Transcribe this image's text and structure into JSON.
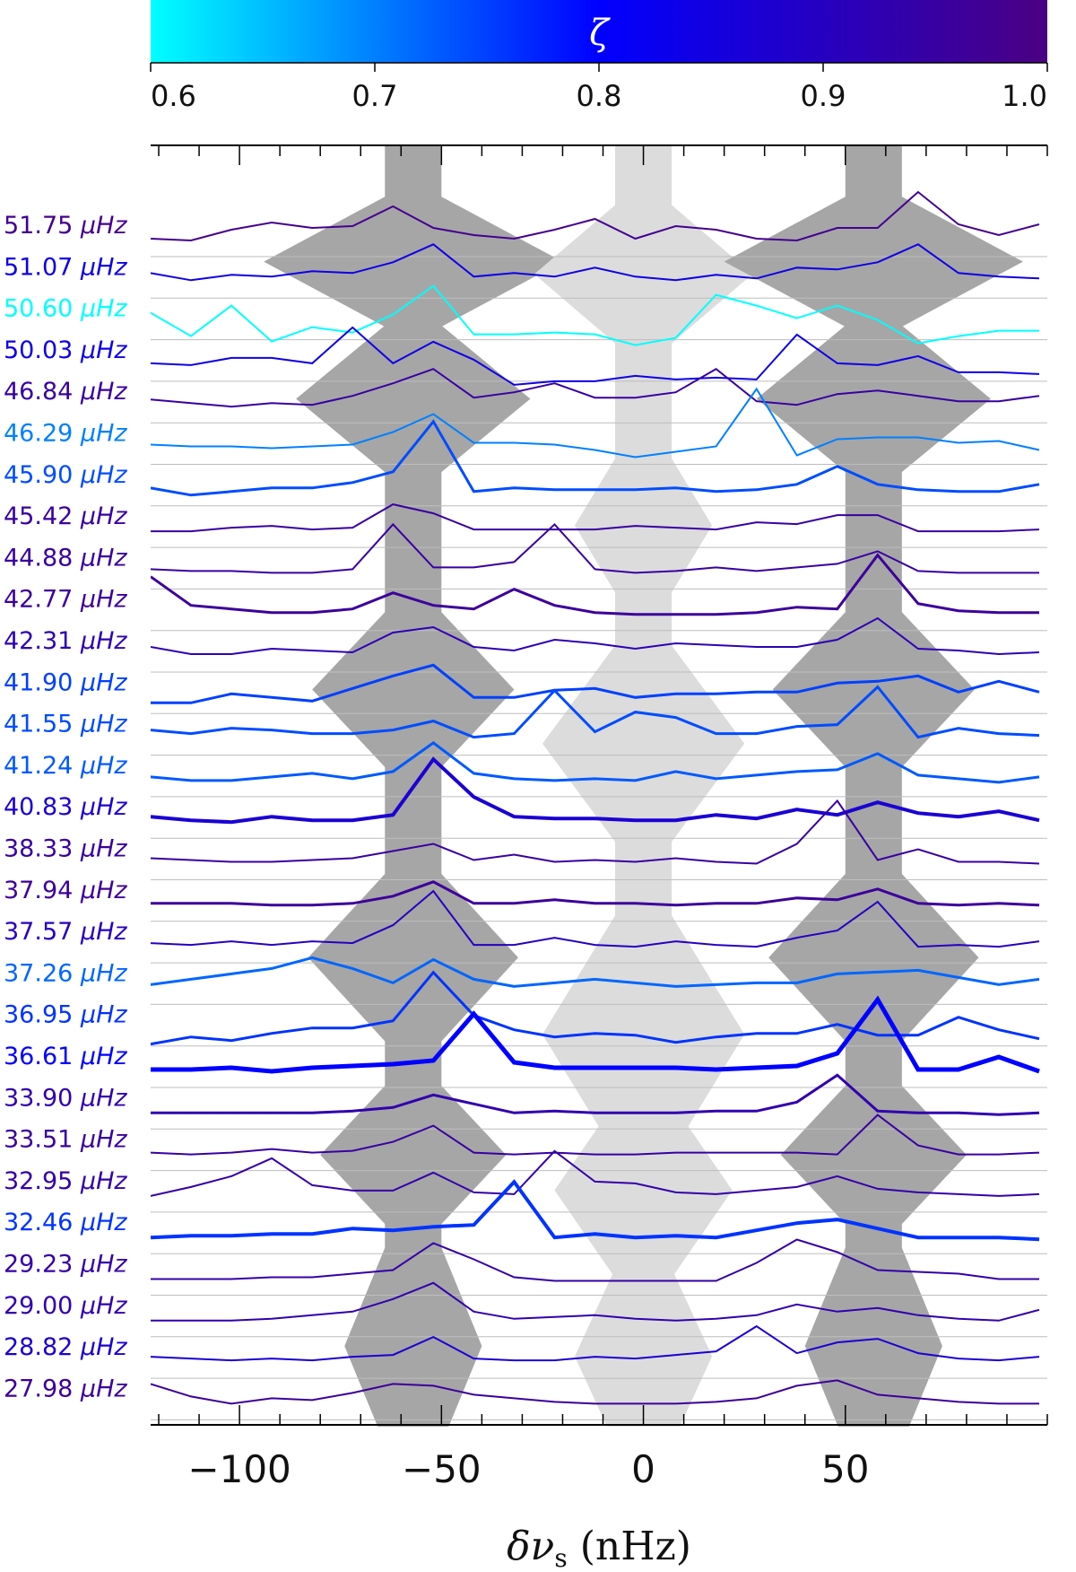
{
  "chart_data": {
    "type": "line",
    "colorbar": {
      "symbol": "ζ",
      "range": [
        0.6,
        1.0
      ],
      "ticks": [
        "0.6",
        "0.7",
        "0.8",
        "0.9",
        "1.0"
      ],
      "colors": [
        "#00ffff",
        "#0000ff",
        "#4b0082"
      ]
    },
    "xlabel": "δν",
    "xlabel_sub": "s",
    "xlabel_unit": "(nHz)",
    "xlim": [
      -122,
      100
    ],
    "xticks": [
      -100,
      -50,
      0,
      50
    ],
    "xtick_labels": [
      "−100",
      "−50",
      "0",
      "50"
    ],
    "unit": "μHz",
    "bands": [
      {
        "center": -57,
        "halfwidth": 7,
        "shade": "dark"
      },
      {
        "center": 0,
        "halfwidth": 7,
        "shade": "light"
      },
      {
        "center": 57,
        "halfwidth": 7,
        "shade": "dark"
      }
    ],
    "x": [
      -122,
      -112,
      -102,
      -92,
      -82,
      -72,
      -62,
      -52,
      -42,
      -32,
      -22,
      -12,
      -2,
      8,
      18,
      28,
      38,
      48,
      58,
      68,
      78,
      88,
      98
    ],
    "rows": [
      {
        "freq": "51.75",
        "zeta": 0.98,
        "width": 2,
        "y": [
          0.1,
          0.05,
          0.35,
          0.55,
          0.4,
          0.45,
          1.0,
          0.4,
          0.2,
          0.1,
          0.35,
          0.65,
          0.1,
          0.45,
          0.35,
          0.1,
          0.05,
          0.4,
          0.4,
          1.4,
          0.5,
          0.2,
          0.5
        ]
      },
      {
        "freq": "51.07",
        "zeta": 0.84,
        "width": 2,
        "y": [
          0.3,
          0.1,
          0.25,
          0.2,
          0.35,
          0.3,
          0.6,
          1.1,
          0.2,
          0.3,
          0.2,
          0.45,
          0.2,
          0.1,
          0.25,
          0.15,
          0.45,
          0.4,
          0.6,
          1.1,
          0.3,
          0.2,
          0.15
        ]
      },
      {
        "freq": "50.60",
        "zeta": 0.6,
        "width": 2,
        "y": [
          0.35,
          -0.3,
          0.55,
          -0.45,
          -0.05,
          -0.2,
          0.3,
          1.1,
          -0.25,
          -0.25,
          -0.2,
          -0.25,
          -0.55,
          -0.35,
          0.85,
          0.55,
          0.2,
          0.55,
          0.15,
          -0.5,
          -0.3,
          -0.15,
          -0.15
        ]
      },
      {
        "freq": "50.03",
        "zeta": 0.84,
        "width": 2,
        "y": [
          0.1,
          0.05,
          0.25,
          0.25,
          0.1,
          1.1,
          0.1,
          0.7,
          0.2,
          -0.5,
          -0.4,
          -0.4,
          -0.25,
          -0.35,
          -0.3,
          -0.35,
          0.9,
          0.1,
          0.05,
          0.3,
          -0.15,
          -0.15,
          -0.2
        ]
      },
      {
        "freq": "46.84",
        "zeta": 0.95,
        "width": 2,
        "y": [
          0.25,
          0.15,
          0.05,
          0.15,
          0.1,
          0.35,
          0.7,
          1.1,
          0.3,
          0.45,
          0.7,
          0.3,
          0.3,
          0.45,
          1.1,
          0.2,
          0.1,
          0.4,
          0.5,
          0.35,
          0.2,
          0.2,
          0.35
        ]
      },
      {
        "freq": "46.29",
        "zeta": 0.7,
        "width": 2,
        "y": [
          0.15,
          0.1,
          0.1,
          0.05,
          0.1,
          0.15,
          0.5,
          1.0,
          0.2,
          0.2,
          0.15,
          0.0,
          -0.2,
          -0.05,
          0.1,
          1.7,
          -0.15,
          0.3,
          0.35,
          0.35,
          0.2,
          0.25,
          0.0
        ]
      },
      {
        "freq": "45.90",
        "zeta": 0.74,
        "width": 3,
        "y": [
          0.1,
          -0.1,
          0.0,
          0.1,
          0.1,
          0.25,
          0.55,
          1.95,
          0.0,
          0.1,
          0.05,
          0.05,
          0.05,
          0.1,
          0.0,
          0.05,
          0.2,
          0.7,
          0.2,
          0.05,
          0.0,
          0.0,
          0.2
        ]
      },
      {
        "freq": "45.42",
        "zeta": 0.95,
        "width": 2,
        "y": [
          0.05,
          0.05,
          0.15,
          0.2,
          0.1,
          0.15,
          0.8,
          0.55,
          0.1,
          0.1,
          0.1,
          0.1,
          0.2,
          0.15,
          0.1,
          0.3,
          0.25,
          0.5,
          0.5,
          0.05,
          0.05,
          0.05,
          0.1
        ]
      },
      {
        "freq": "44.88",
        "zeta": 0.95,
        "width": 2,
        "y": [
          0.15,
          0.1,
          0.1,
          0.05,
          0.05,
          0.15,
          1.4,
          0.2,
          0.2,
          0.35,
          1.4,
          0.15,
          0.05,
          0.1,
          0.2,
          0.1,
          0.2,
          0.3,
          0.65,
          0.1,
          0.05,
          0.05,
          0.05
        ]
      },
      {
        "freq": "42.77",
        "zeta": 0.96,
        "width": 3,
        "y": [
          1.1,
          0.3,
          0.2,
          0.1,
          0.1,
          0.2,
          0.65,
          0.3,
          0.2,
          0.75,
          0.3,
          0.1,
          0.05,
          0.05,
          0.05,
          0.1,
          0.25,
          0.2,
          1.7,
          0.35,
          0.15,
          0.1,
          0.1
        ]
      },
      {
        "freq": "42.31",
        "zeta": 0.92,
        "width": 2,
        "y": [
          0.3,
          0.1,
          0.1,
          0.25,
          0.2,
          0.15,
          0.7,
          0.85,
          0.3,
          0.2,
          0.5,
          0.4,
          0.25,
          0.4,
          0.35,
          0.3,
          0.3,
          0.5,
          1.1,
          0.25,
          0.2,
          0.1,
          0.15
        ]
      },
      {
        "freq": "41.90",
        "zeta": 0.75,
        "width": 3,
        "y": [
          -0.1,
          -0.1,
          0.15,
          0.05,
          -0.05,
          0.3,
          0.65,
          0.95,
          0.05,
          0.05,
          0.25,
          0.3,
          0.05,
          0.15,
          0.15,
          0.2,
          0.2,
          0.45,
          0.5,
          0.65,
          0.2,
          0.5,
          0.2
        ]
      },
      {
        "freq": "41.55",
        "zeta": 0.74,
        "width": 3,
        "y": [
          0.3,
          0.2,
          0.35,
          0.3,
          0.2,
          0.2,
          0.3,
          0.55,
          0.1,
          0.2,
          1.4,
          0.25,
          0.8,
          0.65,
          0.2,
          0.2,
          0.4,
          0.45,
          1.5,
          0.1,
          0.35,
          0.2,
          0.15
        ]
      },
      {
        "freq": "41.24",
        "zeta": 0.73,
        "width": 3,
        "y": [
          0.15,
          0.05,
          0.05,
          0.15,
          0.25,
          0.1,
          0.3,
          1.1,
          0.25,
          0.1,
          0.05,
          0.1,
          0.05,
          0.3,
          0.1,
          0.2,
          0.3,
          0.35,
          0.8,
          0.2,
          0.1,
          0.0,
          0.15
        ]
      },
      {
        "freq": "40.83",
        "zeta": 0.87,
        "width": 4,
        "y": [
          0.2,
          0.1,
          0.05,
          0.2,
          0.1,
          0.1,
          0.25,
          1.8,
          0.75,
          0.2,
          0.15,
          0.15,
          0.1,
          0.1,
          0.25,
          0.15,
          0.4,
          0.25,
          0.6,
          0.3,
          0.2,
          0.35,
          0.1
        ]
      },
      {
        "freq": "38.33",
        "zeta": 0.95,
        "width": 2,
        "y": [
          0.2,
          0.15,
          0.1,
          0.1,
          0.15,
          0.2,
          0.4,
          0.6,
          0.15,
          0.3,
          0.1,
          0.15,
          0.1,
          0.2,
          0.1,
          0.05,
          0.6,
          1.8,
          0.15,
          0.45,
          0.1,
          0.1,
          0.05
        ]
      },
      {
        "freq": "37.94",
        "zeta": 0.96,
        "width": 3,
        "y": [
          0.1,
          0.1,
          0.1,
          0.05,
          0.05,
          0.1,
          0.3,
          0.7,
          0.1,
          0.1,
          0.2,
          0.1,
          0.1,
          0.05,
          0.1,
          0.1,
          0.25,
          0.2,
          0.5,
          0.1,
          0.05,
          0.1,
          0.05
        ]
      },
      {
        "freq": "37.57",
        "zeta": 0.9,
        "width": 2,
        "y": [
          0.15,
          0.1,
          0.2,
          0.1,
          0.2,
          0.15,
          0.65,
          1.6,
          0.1,
          0.1,
          0.3,
          0.1,
          0.05,
          0.2,
          0.1,
          0.05,
          0.3,
          0.5,
          1.3,
          0.05,
          0.1,
          0.05,
          0.2
        ]
      },
      {
        "freq": "37.26",
        "zeta": 0.72,
        "width": 3,
        "y": [
          0.15,
          0.3,
          0.45,
          0.6,
          0.9,
          0.6,
          0.2,
          0.85,
          0.3,
          0.1,
          0.2,
          0.3,
          0.2,
          0.1,
          0.15,
          0.2,
          0.2,
          0.45,
          0.5,
          0.55,
          0.35,
          0.15,
          0.3
        ]
      },
      {
        "freq": "36.95",
        "zeta": 0.76,
        "width": 3,
        "y": [
          -0.35,
          -0.15,
          -0.25,
          -0.05,
          0.1,
          0.1,
          0.3,
          1.65,
          0.45,
          0.05,
          -0.15,
          -0.05,
          -0.1,
          -0.3,
          -0.15,
          -0.05,
          -0.05,
          0.2,
          -0.1,
          -0.1,
          0.4,
          0.05,
          -0.2
        ]
      },
      {
        "freq": "36.61",
        "zeta": 0.8,
        "width": 5,
        "y": [
          0.1,
          0.1,
          0.15,
          0.05,
          0.15,
          0.2,
          0.25,
          0.35,
          1.65,
          0.3,
          0.15,
          0.15,
          0.15,
          0.15,
          0.1,
          0.15,
          0.2,
          0.55,
          2.05,
          0.1,
          0.1,
          0.45,
          0.05
        ]
      },
      {
        "freq": "33.90",
        "zeta": 0.93,
        "width": 3,
        "y": [
          0.05,
          0.05,
          0.05,
          0.05,
          0.05,
          0.1,
          0.2,
          0.55,
          0.3,
          0.05,
          0.1,
          0.05,
          0.05,
          0.05,
          0.1,
          0.1,
          0.35,
          1.1,
          0.1,
          0.05,
          0.05,
          0.0,
          0.05
        ]
      },
      {
        "freq": "33.51",
        "zeta": 0.95,
        "width": 2,
        "y": [
          0.1,
          0.05,
          0.1,
          0.2,
          0.1,
          0.15,
          0.4,
          0.85,
          0.1,
          0.05,
          0.1,
          0.05,
          0.05,
          0.1,
          0.1,
          0.1,
          0.1,
          0.05,
          1.15,
          0.3,
          0.05,
          0.05,
          0.1
        ]
      },
      {
        "freq": "32.95",
        "zeta": 0.94,
        "width": 2,
        "y": [
          0.05,
          0.3,
          0.6,
          1.1,
          0.35,
          0.2,
          0.2,
          0.7,
          0.15,
          0.1,
          1.3,
          0.45,
          0.4,
          0.15,
          0.1,
          0.2,
          0.3,
          0.6,
          0.25,
          0.15,
          0.1,
          0.05,
          0.1
        ]
      },
      {
        "freq": "32.46",
        "zeta": 0.76,
        "width": 4,
        "y": [
          0.05,
          0.1,
          0.1,
          0.15,
          0.15,
          0.3,
          0.25,
          0.35,
          0.4,
          1.6,
          0.05,
          0.15,
          0.05,
          0.1,
          0.05,
          0.25,
          0.45,
          0.55,
          0.3,
          0.05,
          0.05,
          0.05,
          0.0
        ]
      },
      {
        "freq": "29.23",
        "zeta": 0.94,
        "width": 2,
        "y": [
          0.05,
          0.05,
          0.05,
          0.1,
          0.1,
          0.2,
          0.3,
          1.05,
          0.6,
          0.1,
          0.0,
          0.0,
          0.0,
          0.0,
          0.0,
          0.5,
          1.15,
          0.8,
          0.3,
          0.25,
          0.2,
          0.05,
          0.05
        ]
      },
      {
        "freq": "29.00",
        "zeta": 0.93,
        "width": 2,
        "y": [
          0.05,
          0.05,
          0.05,
          0.1,
          0.2,
          0.3,
          0.65,
          1.1,
          0.3,
          0.1,
          0.15,
          0.2,
          0.1,
          0.05,
          0.1,
          0.2,
          0.5,
          0.3,
          0.4,
          0.2,
          0.1,
          0.05,
          0.35
        ]
      },
      {
        "freq": "28.82",
        "zeta": 0.87,
        "width": 2,
        "y": [
          0.2,
          0.15,
          0.1,
          0.15,
          0.1,
          0.2,
          0.25,
          0.75,
          0.15,
          0.1,
          0.1,
          0.2,
          0.15,
          0.25,
          0.35,
          1.05,
          0.3,
          0.6,
          0.7,
          0.3,
          0.15,
          0.1,
          0.2
        ]
      },
      {
        "freq": "27.98",
        "zeta": 0.96,
        "width": 2,
        "y": [
          0.6,
          0.25,
          0.05,
          0.2,
          0.15,
          0.35,
          0.6,
          0.55,
          0.3,
          0.2,
          0.1,
          0.05,
          0.05,
          0.05,
          0.1,
          0.2,
          0.55,
          0.7,
          0.3,
          0.2,
          0.1,
          0.05,
          0.05
        ]
      }
    ]
  }
}
